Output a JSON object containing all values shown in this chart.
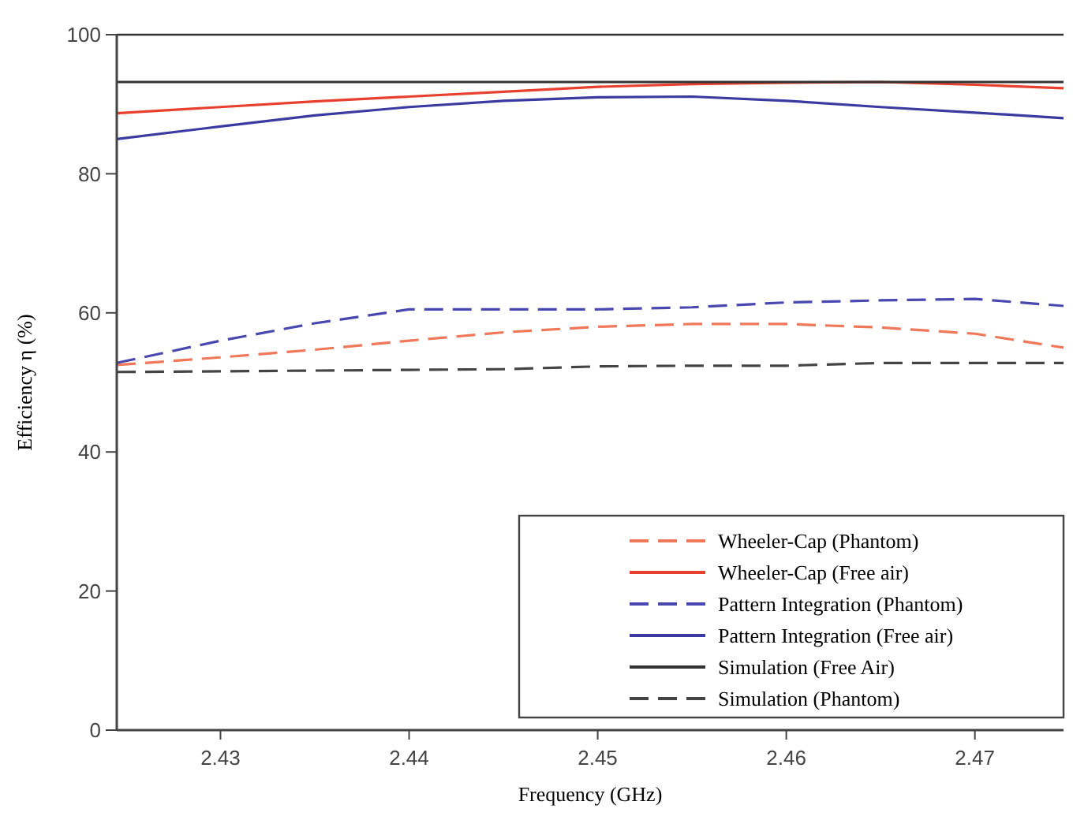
{
  "chart_data": {
    "type": "line",
    "xlabel": "Frequency (GHz)",
    "ylabel": "Efficiency η (%)",
    "xlim": [
      2.4245,
      2.4747
    ],
    "ylim": [
      0,
      100
    ],
    "xticks": [
      2.43,
      2.44,
      2.45,
      2.46,
      2.47
    ],
    "yticks": [
      0,
      20,
      40,
      60,
      80,
      100
    ],
    "grid": false,
    "legend": "bottom right",
    "marker": "none",
    "x": [
      2.4245,
      2.43,
      2.435,
      2.44,
      2.445,
      2.45,
      2.455,
      2.46,
      2.465,
      2.47,
      2.4747
    ],
    "series": [
      {
        "name": "Wheeler-Cap (Phantom)",
        "color": "#f0785a",
        "line_style": "dashed",
        "values": [
          52.5,
          53.6,
          54.7,
          56,
          57.2,
          58,
          58.4,
          58.4,
          57.9,
          57,
          55
        ]
      },
      {
        "name": "Wheeler-Cap (Free air)",
        "color": "#e8402e",
        "line_style": "solid",
        "values": [
          88.7,
          89.6,
          90.4,
          91.1,
          91.8,
          92.5,
          92.9,
          93.1,
          93.2,
          92.8,
          92.3
        ]
      },
      {
        "name": "Pattern Integration (Phantom)",
        "color": "#4848b0",
        "line_style": "dashed",
        "values": [
          52.8,
          56,
          58.5,
          60.5,
          60.5,
          60.5,
          60.8,
          61.5,
          61.8,
          62,
          61
        ]
      },
      {
        "name": "Pattern Integration (Free air)",
        "color": "#3a3aa0",
        "line_style": "solid",
        "values": [
          85,
          86.8,
          88.4,
          89.6,
          90.5,
          91,
          91.1,
          90.5,
          89.6,
          88.8,
          88
        ]
      },
      {
        "name": "Simulation (Free Air)",
        "color": "#333333",
        "line_style": "solid",
        "values": [
          93.2,
          93.2,
          93.2,
          93.2,
          93.2,
          93.2,
          93.2,
          93.2,
          93.2,
          93.2,
          93.2
        ]
      },
      {
        "name": "Simulation (Phantom)",
        "color": "#444444",
        "line_style": "dashed",
        "values": [
          51.5,
          51.6,
          51.7,
          51.8,
          51.9,
          52.3,
          52.4,
          52.4,
          52.8,
          52.8,
          52.8
        ]
      }
    ]
  }
}
